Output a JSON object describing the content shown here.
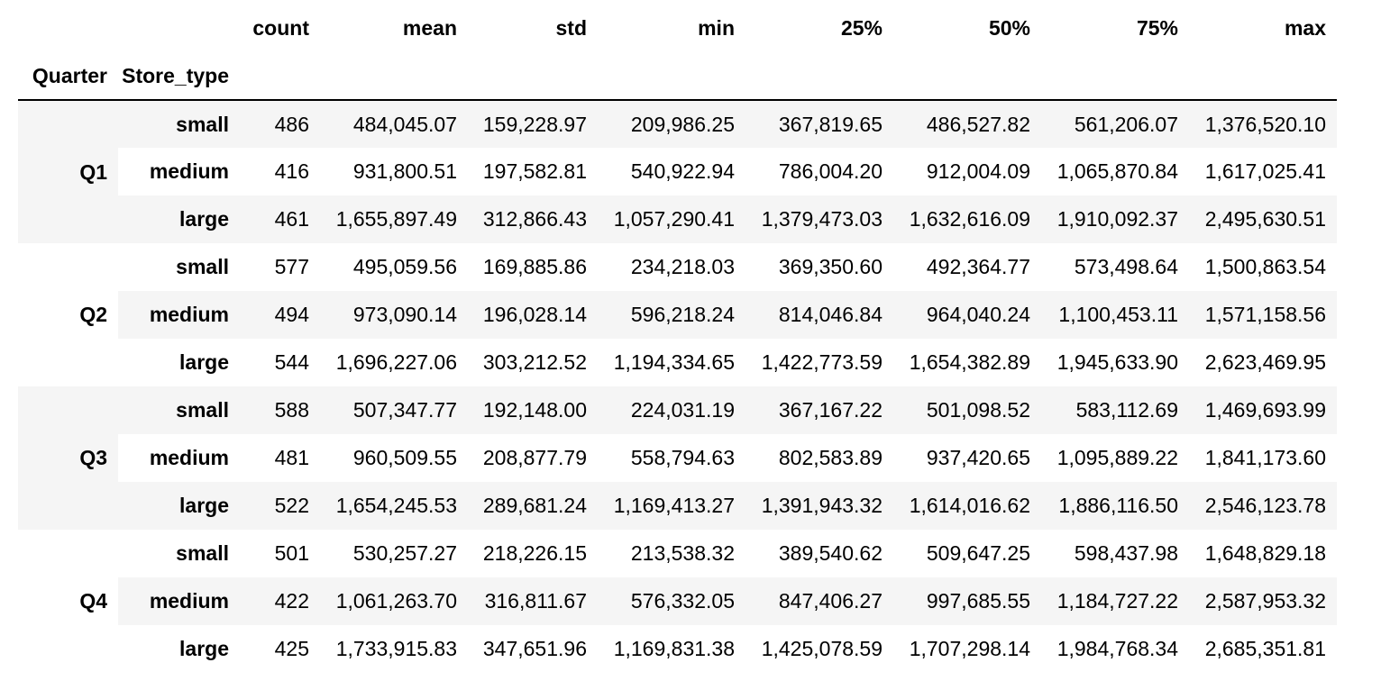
{
  "table": {
    "columns": [
      "count",
      "mean",
      "std",
      "min",
      "25%",
      "50%",
      "75%",
      "max"
    ],
    "index_names": [
      "Quarter",
      "Store_type"
    ],
    "groups": [
      {
        "quarter": "Q1",
        "rows": [
          {
            "store_type": "small",
            "values": [
              "486",
              "484,045.07",
              "159,228.97",
              "209,986.25",
              "367,819.65",
              "486,527.82",
              "561,206.07",
              "1,376,520.10"
            ]
          },
          {
            "store_type": "medium",
            "values": [
              "416",
              "931,800.51",
              "197,582.81",
              "540,922.94",
              "786,004.20",
              "912,004.09",
              "1,065,870.84",
              "1,617,025.41"
            ]
          },
          {
            "store_type": "large",
            "values": [
              "461",
              "1,655,897.49",
              "312,866.43",
              "1,057,290.41",
              "1,379,473.03",
              "1,632,616.09",
              "1,910,092.37",
              "2,495,630.51"
            ]
          }
        ]
      },
      {
        "quarter": "Q2",
        "rows": [
          {
            "store_type": "small",
            "values": [
              "577",
              "495,059.56",
              "169,885.86",
              "234,218.03",
              "369,350.60",
              "492,364.77",
              "573,498.64",
              "1,500,863.54"
            ]
          },
          {
            "store_type": "medium",
            "values": [
              "494",
              "973,090.14",
              "196,028.14",
              "596,218.24",
              "814,046.84",
              "964,040.24",
              "1,100,453.11",
              "1,571,158.56"
            ]
          },
          {
            "store_type": "large",
            "values": [
              "544",
              "1,696,227.06",
              "303,212.52",
              "1,194,334.65",
              "1,422,773.59",
              "1,654,382.89",
              "1,945,633.90",
              "2,623,469.95"
            ]
          }
        ]
      },
      {
        "quarter": "Q3",
        "rows": [
          {
            "store_type": "small",
            "values": [
              "588",
              "507,347.77",
              "192,148.00",
              "224,031.19",
              "367,167.22",
              "501,098.52",
              "583,112.69",
              "1,469,693.99"
            ]
          },
          {
            "store_type": "medium",
            "values": [
              "481",
              "960,509.55",
              "208,877.79",
              "558,794.63",
              "802,583.89",
              "937,420.65",
              "1,095,889.22",
              "1,841,173.60"
            ]
          },
          {
            "store_type": "large",
            "values": [
              "522",
              "1,654,245.53",
              "289,681.24",
              "1,169,413.27",
              "1,391,943.32",
              "1,614,016.62",
              "1,886,116.50",
              "2,546,123.78"
            ]
          }
        ]
      },
      {
        "quarter": "Q4",
        "rows": [
          {
            "store_type": "small",
            "values": [
              "501",
              "530,257.27",
              "218,226.15",
              "213,538.32",
              "389,540.62",
              "509,647.25",
              "598,437.98",
              "1,648,829.18"
            ]
          },
          {
            "store_type": "medium",
            "values": [
              "422",
              "1,061,263.70",
              "316,811.67",
              "576,332.05",
              "847,406.27",
              "997,685.55",
              "1,184,727.22",
              "2,587,953.32"
            ]
          },
          {
            "store_type": "large",
            "values": [
              "425",
              "1,733,915.83",
              "347,651.96",
              "1,169,831.38",
              "1,425,078.59",
              "1,707,298.14",
              "1,984,768.34",
              "2,685,351.81"
            ]
          }
        ]
      }
    ]
  }
}
